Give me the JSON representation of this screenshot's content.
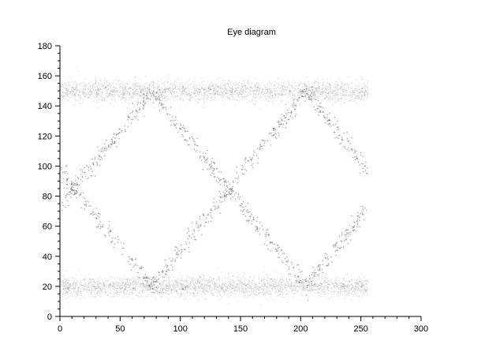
{
  "chart_data": {
    "type": "scatter",
    "title": "Eye diagram",
    "xlabel": "",
    "ylabel": "",
    "xlim": [
      0,
      300
    ],
    "ylim": [
      0,
      180
    ],
    "x_major_ticks": [
      0,
      50,
      100,
      150,
      200,
      250,
      300
    ],
    "y_major_ticks": [
      0,
      20,
      40,
      60,
      80,
      100,
      120,
      140,
      160,
      180
    ],
    "x_minor_step": 10,
    "y_minor_step": 5,
    "grid": false,
    "data_x_range": [
      0,
      256
    ],
    "levels": [
      20,
      150
    ],
    "crossing_level": 85,
    "crossings_x": [
      12,
      140
    ],
    "transition_vertices": [
      {
        "x": 76,
        "y": 148
      },
      {
        "x": 76,
        "y": 22
      },
      {
        "x": 204,
        "y": 148
      },
      {
        "x": 204,
        "y": 22
      }
    ],
    "color": "#000000"
  }
}
